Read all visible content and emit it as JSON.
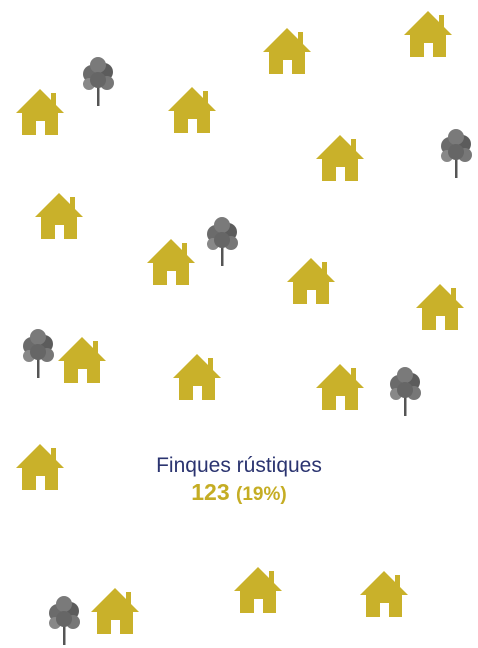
{
  "label": "Finques rústiques",
  "count": 123,
  "share": "(19%)"
}
